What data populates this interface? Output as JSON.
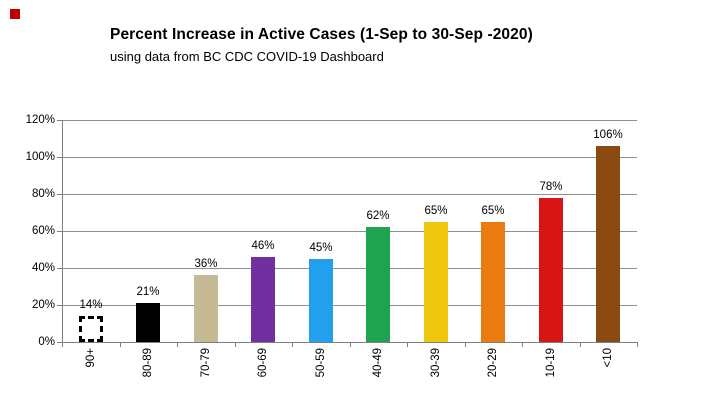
{
  "decorations": {
    "red_marker_color": "#c00000"
  },
  "chart_data": {
    "type": "bar",
    "title": "Percent Increase in Active Cases (1-Sep to 30-Sep -2020)",
    "subtitle": "using data from BC CDC COVID-19 Dashboard",
    "categories": [
      "90+",
      "80-89",
      "70-79",
      "60-69",
      "50-59",
      "40-49",
      "30-39",
      "20-29",
      "10-19",
      "<10"
    ],
    "values": [
      14,
      21,
      36,
      46,
      45,
      62,
      65,
      65,
      78,
      106
    ],
    "value_labels": [
      "14%",
      "21%",
      "36%",
      "46%",
      "45%",
      "62%",
      "65%",
      "65%",
      "78%",
      "106%"
    ],
    "bar_colors": [
      "#ffffff",
      "#000000",
      "#c4ba94",
      "#7030a0",
      "#23a0ed",
      "#1fa34f",
      "#eec60c",
      "#e87c10",
      "#d91414",
      "#8b4a12"
    ],
    "first_bar_style": "dashed-black-outline-white-fill",
    "xlabel": "",
    "ylabel": "",
    "ylim": [
      0,
      120
    ],
    "ytick_step": 20,
    "ytick_labels": [
      "0%",
      "20%",
      "40%",
      "60%",
      "80%",
      "100%",
      "120%"
    ],
    "grid": true,
    "gridline_color": "#8f8f8f",
    "axis_color": "#7f7f7f",
    "legend": "none",
    "data_label_position": "above-bar"
  }
}
